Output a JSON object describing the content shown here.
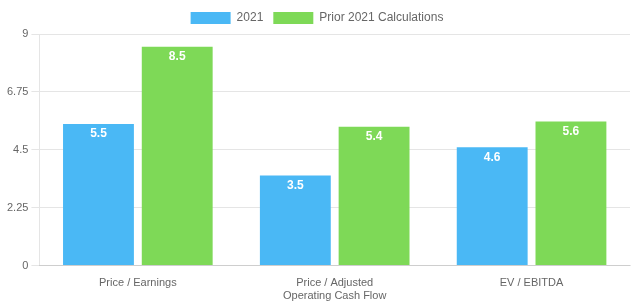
{
  "chart_data": {
    "type": "bar",
    "categories": [
      "Price / Earnings",
      "Price / Adjusted Operating Cash Flow",
      "EV / EBITDA"
    ],
    "series": [
      {
        "name": "2021",
        "color": "#4ab8f5",
        "values": [
          5.5,
          3.5,
          4.6
        ]
      },
      {
        "name": "Prior 2021 Calculations",
        "color": "#7ed957",
        "values": [
          8.5,
          5.4,
          5.6
        ]
      }
    ],
    "ylim": [
      0,
      9
    ],
    "yticks": [
      0,
      2.25,
      4.5,
      6.75,
      9
    ],
    "grid": true,
    "legend": "top",
    "data_labels": true
  }
}
